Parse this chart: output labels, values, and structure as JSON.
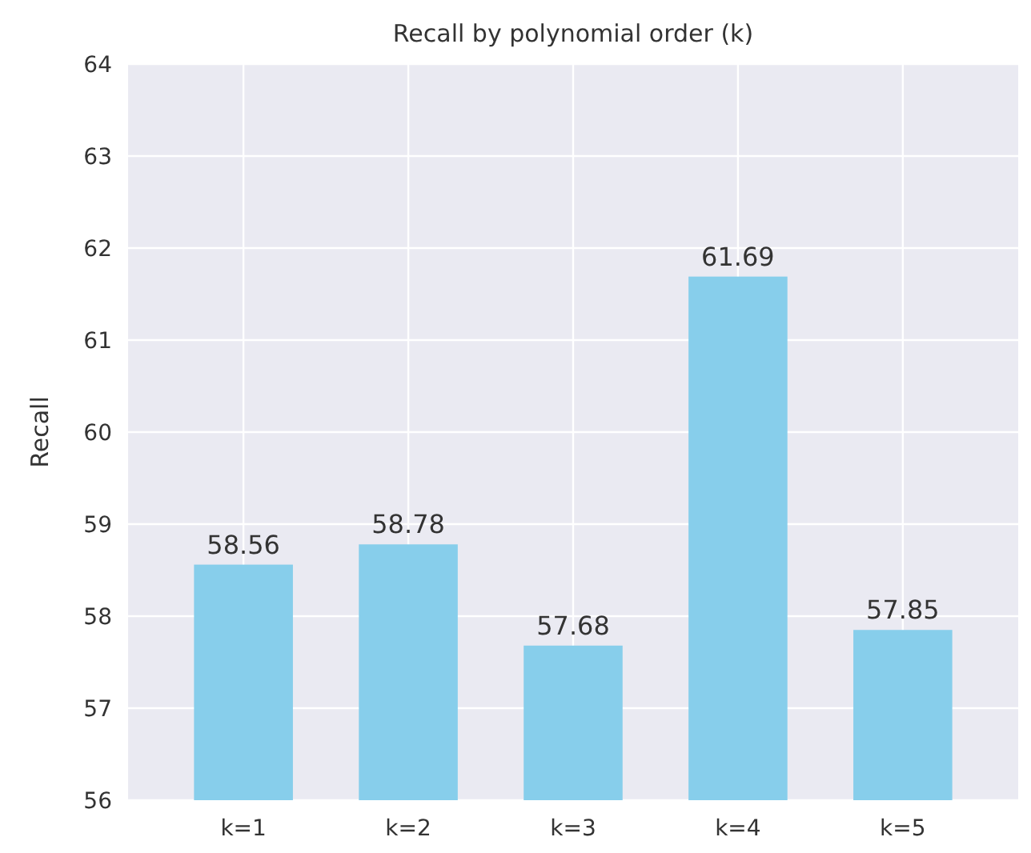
{
  "chart_data": {
    "type": "bar",
    "title": "Recall by polynomial order (k)",
    "ylabel": "Recall",
    "categories": [
      "k=1",
      "k=2",
      "k=3",
      "k=4",
      "k=5"
    ],
    "values": [
      58.56,
      58.78,
      57.68,
      61.69,
      57.85
    ],
    "color": "#87ceeb",
    "ylim": [
      56,
      64
    ],
    "yticks": [
      56,
      57,
      58,
      59,
      60,
      61,
      62,
      63,
      64
    ],
    "grid": true,
    "data_labels": true
  }
}
